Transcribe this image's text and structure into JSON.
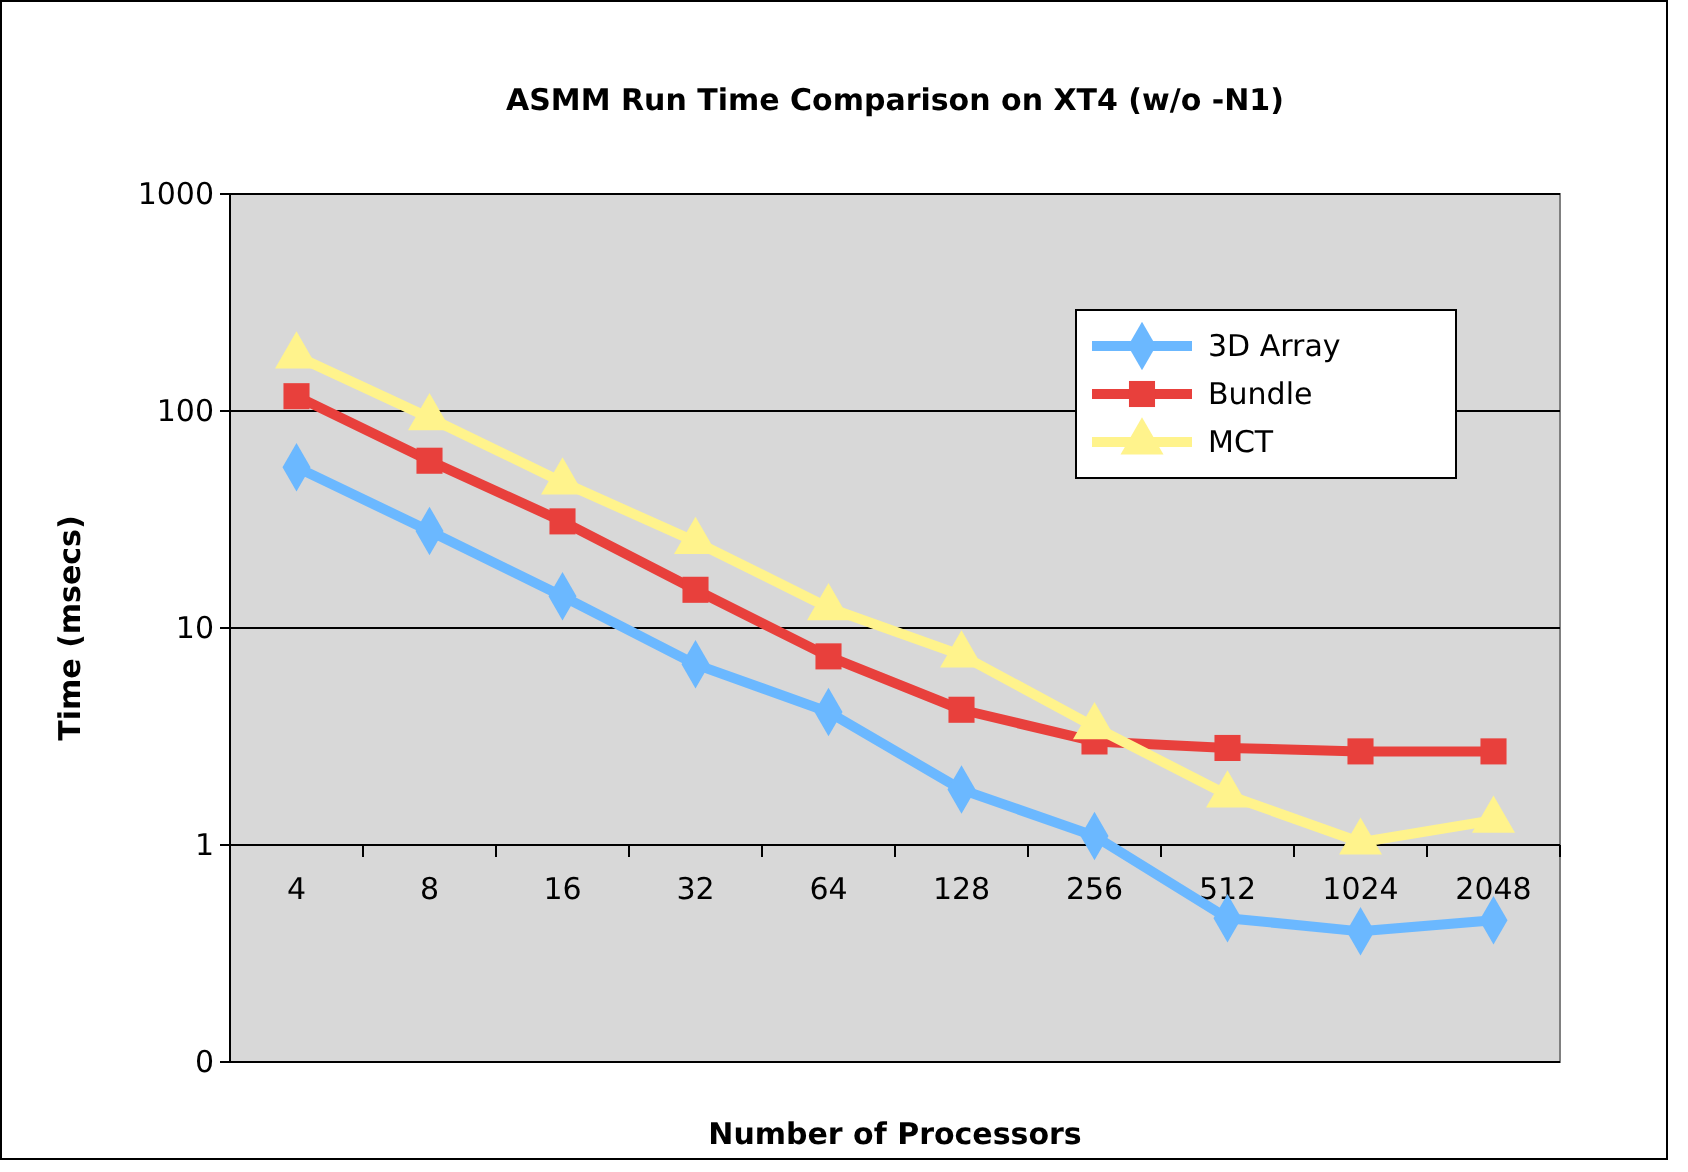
{
  "chart_data": {
    "type": "line",
    "title": "ASMM Run Time Comparison on XT4 (w/o -N1)",
    "xlabel": "Number of Processors",
    "ylabel": "Time (msecs)",
    "categories": [
      "4",
      "8",
      "16",
      "32",
      "64",
      "128",
      "256",
      "512",
      "1024",
      "2048"
    ],
    "series": [
      {
        "name": "3D Array",
        "color": "#6bb8ff",
        "marker": "diamond",
        "values": [
          55,
          28,
          14,
          6.8,
          4.1,
          1.8,
          1.1,
          0.46,
          0.4,
          0.45
        ]
      },
      {
        "name": "Bundle",
        "color": "#e8403c",
        "marker": "square",
        "values": [
          117,
          59,
          31,
          15,
          7.4,
          4.2,
          3.0,
          2.8,
          2.7,
          2.7
        ]
      },
      {
        "name": "MCT",
        "color": "#fff38c",
        "marker": "triangle",
        "values": [
          179,
          93,
          47,
          25,
          12.4,
          7.5,
          3.5,
          1.7,
          1.03,
          1.3
        ]
      }
    ],
    "log": "y",
    "ylim": [
      0.1,
      1000
    ],
    "yticks": [
      {
        "value": 0.1,
        "label": "0"
      },
      1,
      10,
      100,
      1000
    ],
    "grid": "y",
    "legend": "top right"
  }
}
